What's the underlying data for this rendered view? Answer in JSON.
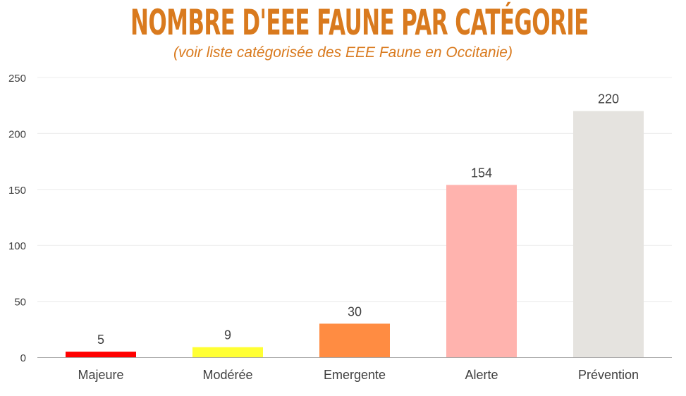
{
  "colors": {
    "title": "#D97A1E",
    "subtitle": "#D97A1E",
    "grid": "#ECECEC",
    "axis": "#A6A6A6",
    "tick_text": "#404040",
    "label_text": "#404040"
  },
  "chart_data": {
    "type": "bar",
    "title": "NOMBRE D'EEE FAUNE PAR CATÉGORIE",
    "subtitle": "(voir liste catégorisée des EEE Faune en Occitanie)",
    "categories": [
      "Majeure",
      "Modérée",
      "Emergente",
      "Alerte",
      "Prévention"
    ],
    "values": [
      5,
      9,
      30,
      154,
      220
    ],
    "bar_colors": [
      "#FF0000",
      "#FFFF33",
      "#FF8C42",
      "#FFB3AE",
      "#E5E3DF"
    ],
    "ylim": [
      0,
      250
    ],
    "yticks": [
      0,
      50,
      100,
      150,
      200,
      250
    ],
    "grid": true,
    "legend": "none",
    "data_labels": true
  }
}
